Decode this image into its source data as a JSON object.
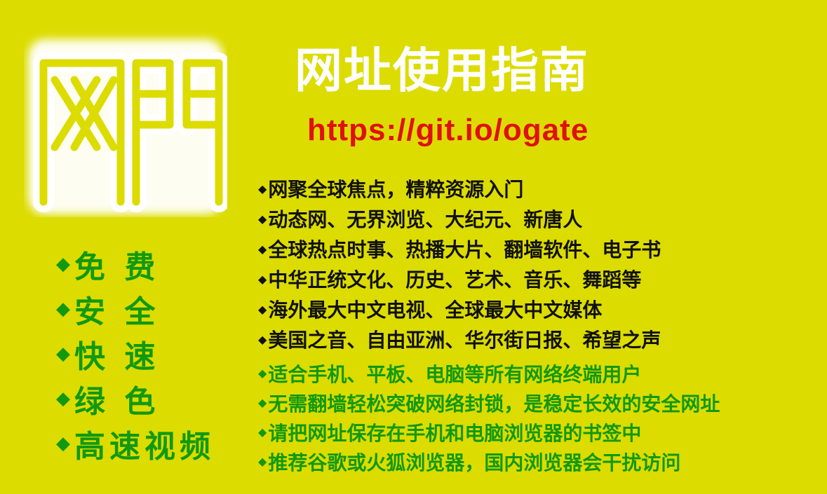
{
  "logo": {
    "text": "网門",
    "icon": "wangmen-logo"
  },
  "title": "网址使用指南",
  "url": "https://git.io/ogate",
  "bullet_glyph": "◆",
  "features": [
    "免 费",
    "安 全",
    "快 速",
    "绿 色",
    "高速视频"
  ],
  "content_list": [
    "网聚全球焦点，精粹资源入门",
    "动态网、无界浏览、大纪元、新唐人",
    "全球热点时事、热播大片、翻墙软件、电子书",
    "中华正统文化、历史、艺术、音乐、舞蹈等",
    "海外最大中文电视、全球最大中文媒体",
    "美国之音、自由亚洲、华尔街日报、希望之声"
  ],
  "usage_list": [
    "适合手机、平板、电脑等所有网络终端用户",
    "无需翻墙轻松突破网络封锁，是稳定长效的安全网址",
    "请把网址保存在手机和电脑浏览器的书签中",
    "推荐谷歌或火狐浏览器，国内浏览器会干扰访问"
  ],
  "colors": {
    "background": "#dcdc00",
    "title": "#ffffff",
    "url": "#e01010",
    "green_text": "#119911",
    "dark_text": "#111111"
  }
}
